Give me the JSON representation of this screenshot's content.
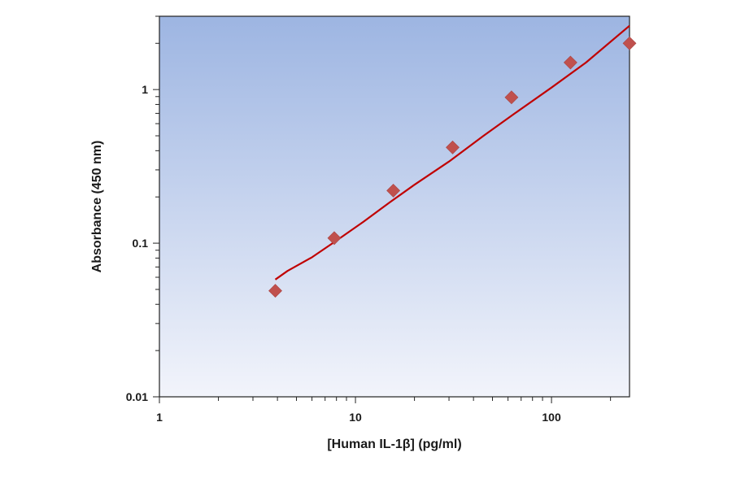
{
  "chart_data": {
    "type": "scatter",
    "title": "",
    "xlabel": "[Human IL-1β] (pg/ml)",
    "ylabel": "Absorbance (450 nm)",
    "x_scale": "log",
    "y_scale": "log",
    "xlim": [
      1,
      250
    ],
    "ylim": [
      0.01,
      3
    ],
    "x_ticks": [
      {
        "value": 1,
        "label": "1"
      },
      {
        "value": 10,
        "label": "10"
      },
      {
        "value": 100,
        "label": "100"
      }
    ],
    "y_ticks": [
      {
        "value": 0.01,
        "label": "0.01"
      },
      {
        "value": 0.1,
        "label": "0.1"
      },
      {
        "value": 1,
        "label": "1"
      }
    ],
    "grid": false,
    "legend": "none",
    "series": [
      {
        "kind": "points",
        "marker": "diamond",
        "color": "#c0504d",
        "x": [
          3.9,
          7.8,
          15.6,
          31.3,
          62.5,
          125,
          250
        ],
        "y": [
          0.049,
          0.108,
          0.22,
          0.42,
          0.89,
          1.5,
          2.0
        ]
      },
      {
        "kind": "fit-line",
        "color": "#c00000",
        "x": [
          3.9,
          4.5,
          6,
          8,
          11,
          15,
          20,
          30,
          45,
          65,
          100,
          150,
          250
        ],
        "y": [
          0.058,
          0.066,
          0.081,
          0.104,
          0.138,
          0.185,
          0.24,
          0.34,
          0.5,
          0.7,
          1.03,
          1.5,
          2.6
        ]
      }
    ],
    "colors": {
      "plot_bg_top": "#9db5e2",
      "plot_bg_bottom": "#f2f4fb",
      "axis": "#222222"
    }
  }
}
